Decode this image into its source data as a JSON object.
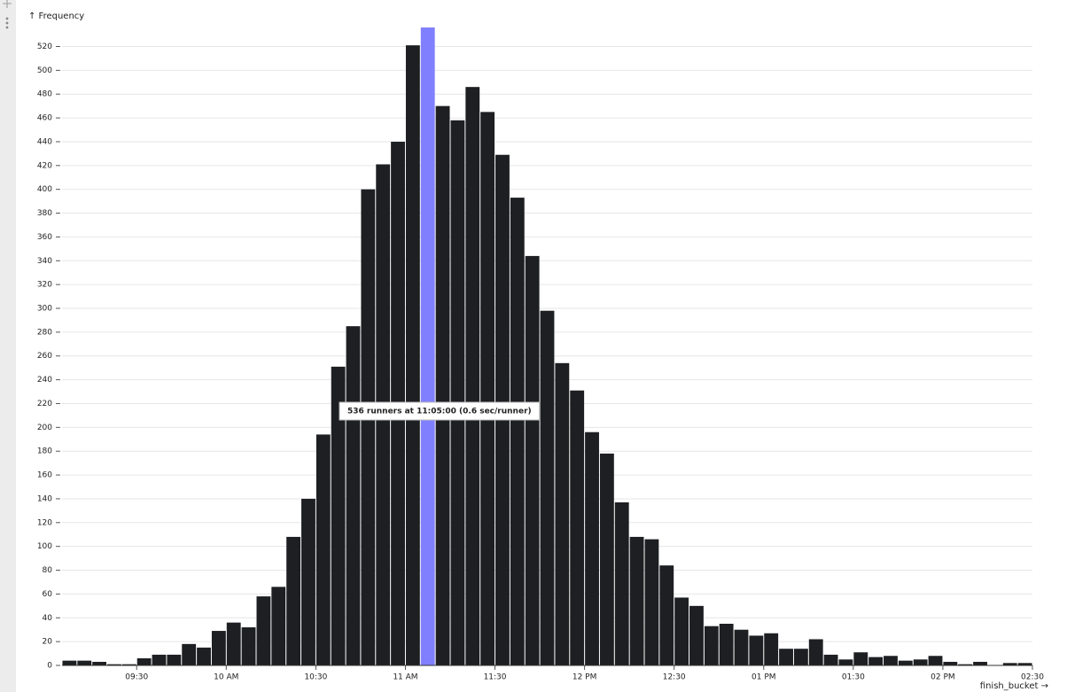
{
  "chart_data": {
    "type": "histogram",
    "y_label": "↑ Frequency",
    "x_label": "finish_bucket →",
    "annotation": "536 runners at 11:05:00 (0.6 sec/runner)",
    "color": "#1d1f22",
    "highlight_color": "#8080ff",
    "highlight_bin": "11:05",
    "bins": [
      "09:05",
      "09:10",
      "09:15",
      "09:20",
      "09:25",
      "09:30",
      "09:35",
      "09:40",
      "09:45",
      "09:50",
      "09:55",
      "10:00",
      "10:05",
      "10:10",
      "10:15",
      "10:20",
      "10:25",
      "10:30",
      "10:35",
      "10:40",
      "10:45",
      "10:50",
      "10:55",
      "11:00",
      "11:05",
      "11:10",
      "11:15",
      "11:20",
      "11:25",
      "11:30",
      "11:35",
      "11:40",
      "11:45",
      "11:50",
      "11:55",
      "12:00",
      "12:05",
      "12:10",
      "12:15",
      "12:20",
      "12:25",
      "12:30",
      "12:35",
      "12:40",
      "12:45",
      "12:50",
      "12:55",
      "13:00",
      "13:05",
      "13:10",
      "13:15",
      "13:20",
      "13:25",
      "13:30",
      "13:35",
      "13:40",
      "13:45",
      "13:50",
      "13:55",
      "14:00",
      "14:05",
      "14:10",
      "14:15",
      "14:20",
      "14:25",
      "14:30"
    ],
    "values": [
      4,
      4,
      3,
      1,
      1,
      6,
      9,
      9,
      18,
      15,
      29,
      36,
      32,
      58,
      66,
      108,
      140,
      194,
      251,
      285,
      400,
      421,
      440,
      521,
      536,
      470,
      458,
      486,
      465,
      429,
      393,
      344,
      298,
      254,
      231,
      196,
      178,
      137,
      108,
      106,
      84,
      57,
      50,
      33,
      35,
      30,
      25,
      27,
      14,
      14,
      22,
      9,
      5,
      11,
      7,
      8,
      4,
      5,
      8,
      3,
      1,
      3,
      0,
      2,
      2
    ],
    "xlim": [
      "09:05",
      "14:30"
    ],
    "xticks": [
      {
        "value": "09:30",
        "label": "09:30"
      },
      {
        "value": "10:00",
        "label": "10 AM"
      },
      {
        "value": "10:30",
        "label": "10:30"
      },
      {
        "value": "11:00",
        "label": "11 AM"
      },
      {
        "value": "11:30",
        "label": "11:30"
      },
      {
        "value": "12:00",
        "label": "12 PM"
      },
      {
        "value": "12:30",
        "label": "12:30"
      },
      {
        "value": "13:00",
        "label": "01 PM"
      },
      {
        "value": "13:30",
        "label": "01:30"
      },
      {
        "value": "14:00",
        "label": "02 PM"
      },
      {
        "value": "14:30",
        "label": "02:30"
      }
    ],
    "ylim": [
      0,
      536
    ],
    "yticks": [
      0,
      20,
      40,
      60,
      80,
      100,
      120,
      140,
      160,
      180,
      200,
      220,
      240,
      260,
      280,
      300,
      320,
      340,
      360,
      380,
      400,
      420,
      440,
      460,
      480,
      500,
      520
    ],
    "grid": true
  }
}
